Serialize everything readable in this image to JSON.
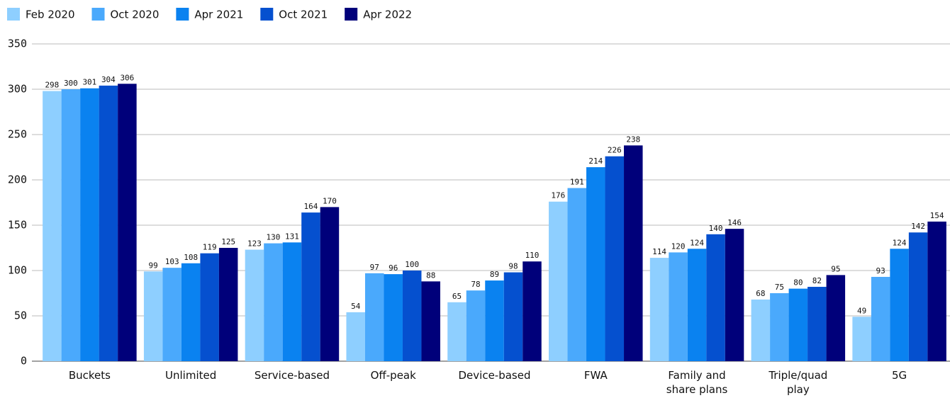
{
  "chart_data": {
    "type": "bar",
    "categories": [
      "Buckets",
      "Unlimited",
      "Service-based",
      "Off-peak",
      "Device-based",
      "FWA",
      "Family and\nshare plans",
      "Triple/quad\nplay",
      "5G"
    ],
    "series": [
      {
        "name": "Feb 2020",
        "color": "#8ecfff",
        "values": [
          298,
          99,
          123,
          54,
          65,
          176,
          114,
          68,
          49
        ]
      },
      {
        "name": "Oct 2020",
        "color": "#4aa9fc",
        "values": [
          300,
          103,
          130,
          97,
          78,
          191,
          120,
          75,
          93
        ]
      },
      {
        "name": "Apr 2021",
        "color": "#0a82f0",
        "values": [
          301,
          108,
          131,
          96,
          89,
          214,
          124,
          80,
          124
        ]
      },
      {
        "name": "Oct 2021",
        "color": "#0550cf",
        "values": [
          304,
          119,
          164,
          100,
          98,
          226,
          140,
          82,
          142
        ]
      },
      {
        "name": "Apr 2022",
        "color": "#00007a",
        "values": [
          306,
          125,
          170,
          88,
          110,
          238,
          146,
          95,
          154
        ]
      }
    ],
    "ylim": [
      0,
      350
    ],
    "yticks": [
      0,
      50,
      100,
      150,
      200,
      250,
      300,
      350
    ],
    "grid": true,
    "legend": "top-left"
  }
}
